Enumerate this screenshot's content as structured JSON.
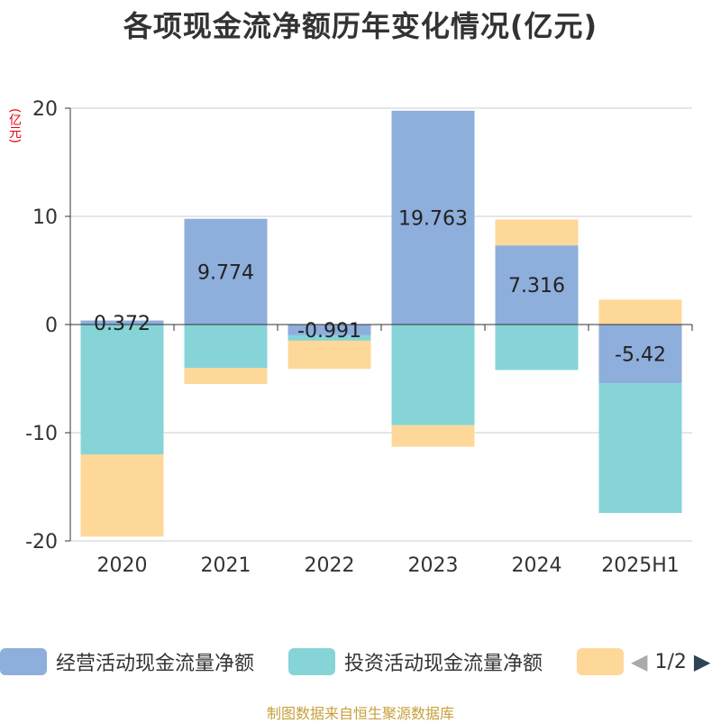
{
  "title": "各项现金流净额历年变化情况(亿元)",
  "unit_label": "(亿元)",
  "source": "制图数据来自恒生聚源数据库",
  "colors": {
    "operating": "#8eaedb",
    "investing": "#86d4d8",
    "financing": "#fdd899",
    "axis": "#333333",
    "grid": "#cccccc"
  },
  "legend": {
    "items": [
      {
        "label": "经营活动现金流量净额",
        "color": "#8eaedb"
      },
      {
        "label": "投资活动现金流量净额",
        "color": "#86d4d8"
      },
      {
        "label": "",
        "color": "#fdd899"
      }
    ],
    "pager": {
      "text": "1/2",
      "prev_icon": "triangle-left",
      "next_icon": "triangle-right"
    }
  },
  "chart_data": {
    "type": "bar",
    "stacked": true,
    "categories": [
      "2020",
      "2021",
      "2022",
      "2023",
      "2024",
      "2025H1"
    ],
    "series": [
      {
        "name": "经营活动现金流量净额",
        "color": "#8eaedb",
        "values": [
          0.372,
          9.774,
          -0.991,
          19.763,
          7.316,
          -5.42
        ],
        "labels": [
          "0.372",
          "9.774",
          "-0.991",
          "19.763",
          "7.316",
          "-5.42"
        ]
      },
      {
        "name": "投资活动现金流量净额",
        "color": "#86d4d8",
        "values": [
          -12.0,
          -4.0,
          -0.5,
          -9.3,
          -4.2,
          -12.0
        ]
      },
      {
        "color": "#fdd899",
        "values": [
          -7.6,
          -1.5,
          -2.6,
          -2.0,
          2.4,
          2.3
        ]
      }
    ],
    "ylim": [
      -20,
      20
    ],
    "yticks": [
      20,
      10,
      0,
      -10,
      -20
    ],
    "ytick_labels": [
      "20",
      "10",
      "0",
      "-10",
      "-20"
    ],
    "grid": true
  }
}
